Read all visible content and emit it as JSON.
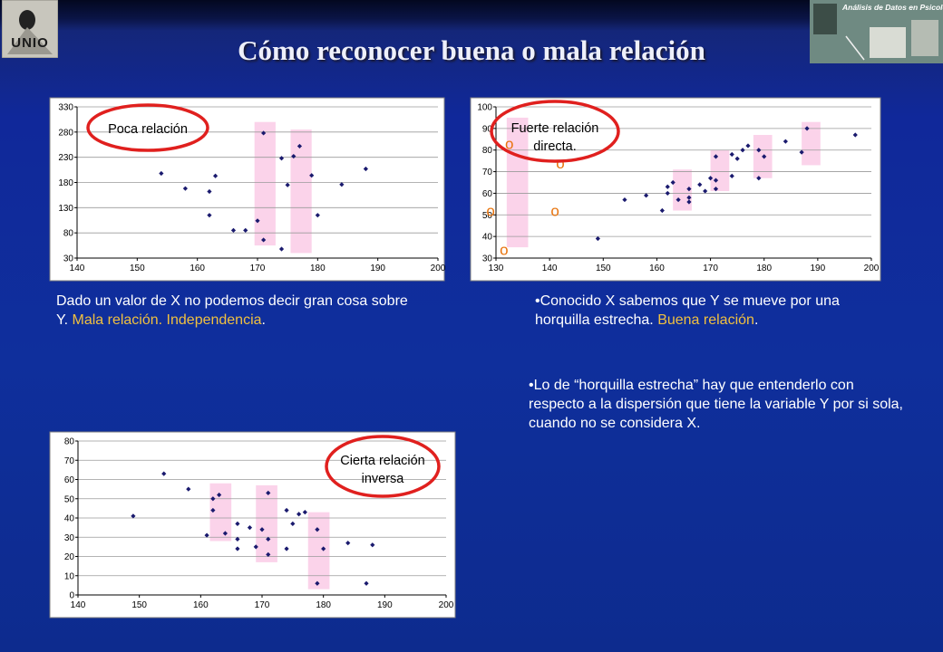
{
  "slide": {
    "title": "Cómo reconocer buena o mala relación",
    "logo_left": "UNIO",
    "logo_right": "Análisis de Datos en Psicología"
  },
  "text1": {
    "lead": "Dado un valor de X no podemos decir gran cosa sobre Y. ",
    "highlight": "Mala relación. Independencia",
    "end": "."
  },
  "text2": {
    "lead": "•Conocido  X sabemos que Y se mueve por una horquilla estrecha. ",
    "highlight": "Buena relación",
    "end": "."
  },
  "text3": {
    "body": "•Lo de “horquilla estrecha” hay que entenderlo con respecto a la dispersión que tiene la variable Y por si sola, cuando no se considera X."
  },
  "colors": {
    "point": "#1a1a6e",
    "band": "#fbd3ea",
    "circle": "#e0201e",
    "marker": "#e8730c",
    "highlight": "#f0c040"
  },
  "chart_data": [
    {
      "type": "scatter",
      "annotation": "Poca relación",
      "xlim": [
        140,
        200
      ],
      "ylim": [
        30,
        330
      ],
      "xticks": [
        140,
        150,
        160,
        170,
        180,
        190,
        200
      ],
      "yticks": [
        30,
        80,
        130,
        180,
        230,
        280,
        330
      ],
      "grid": true,
      "points": [
        [
          154,
          198
        ],
        [
          158,
          168
        ],
        [
          162,
          162
        ],
        [
          163,
          193
        ],
        [
          162,
          115
        ],
        [
          166,
          85
        ],
        [
          168,
          85
        ],
        [
          170,
          104
        ],
        [
          171,
          278
        ],
        [
          171,
          66
        ],
        [
          174,
          48
        ],
        [
          174,
          228
        ],
        [
          175,
          175
        ],
        [
          176,
          232
        ],
        [
          177,
          252
        ],
        [
          179,
          194
        ],
        [
          180,
          115
        ],
        [
          184,
          176
        ],
        [
          188,
          207
        ]
      ],
      "bands": [
        [
          169.5,
          173,
          55,
          300
        ],
        [
          175.5,
          179,
          40,
          285
        ]
      ]
    },
    {
      "type": "scatter",
      "annotation_lines": [
        "Fuerte relación",
        "directa."
      ],
      "xlim": [
        130,
        200
      ],
      "ylim": [
        30,
        100
      ],
      "xticks": [
        130,
        140,
        150,
        160,
        170,
        180,
        190,
        200
      ],
      "yticks": [
        30,
        40,
        50,
        60,
        70,
        80,
        90,
        100
      ],
      "grid": true,
      "points": [
        [
          149,
          39
        ],
        [
          154,
          57
        ],
        [
          158,
          59
        ],
        [
          161,
          52
        ],
        [
          162,
          60
        ],
        [
          162,
          63
        ],
        [
          163,
          65
        ],
        [
          164,
          57
        ],
        [
          166,
          56
        ],
        [
          166,
          58
        ],
        [
          166,
          62
        ],
        [
          168,
          64
        ],
        [
          169,
          61
        ],
        [
          170,
          67
        ],
        [
          171,
          62
        ],
        [
          171,
          66
        ],
        [
          171,
          77
        ],
        [
          174,
          68
        ],
        [
          174,
          78
        ],
        [
          175,
          76
        ],
        [
          176,
          80
        ],
        [
          177,
          82
        ],
        [
          179,
          80
        ],
        [
          179,
          67
        ],
        [
          180,
          77
        ],
        [
          184,
          84
        ],
        [
          187,
          79
        ],
        [
          188,
          90
        ],
        [
          197,
          87
        ]
      ],
      "bands": [
        [
          132,
          136,
          35,
          95
        ],
        [
          163,
          166.5,
          52,
          71
        ],
        [
          170,
          173.5,
          61,
          80
        ],
        [
          178,
          181.5,
          67,
          87
        ],
        [
          187,
          190.5,
          73,
          93
        ]
      ],
      "markers": [
        {
          "label": "o",
          "x": 132.5,
          "y": 83
        },
        {
          "label": "o",
          "x": 142,
          "y": 74
        },
        {
          "label": "o",
          "x": 129,
          "y": 52
        },
        {
          "label": "o",
          "x": 141,
          "y": 52
        },
        {
          "label": "o",
          "x": 131.5,
          "y": 34
        }
      ]
    },
    {
      "type": "scatter",
      "annotation_lines": [
        "Cierta relación",
        "inversa"
      ],
      "xlim": [
        140,
        200
      ],
      "ylim": [
        0,
        80
      ],
      "xticks": [
        140,
        150,
        160,
        170,
        180,
        190,
        200
      ],
      "yticks": [
        0,
        10,
        20,
        30,
        40,
        50,
        60,
        70,
        80
      ],
      "grid": true,
      "points": [
        [
          149,
          41
        ],
        [
          154,
          63
        ],
        [
          158,
          55
        ],
        [
          161,
          31
        ],
        [
          162,
          44
        ],
        [
          162,
          50
        ],
        [
          163,
          52
        ],
        [
          164,
          32
        ],
        [
          166,
          37
        ],
        [
          166,
          24
        ],
        [
          166,
          29
        ],
        [
          168,
          35
        ],
        [
          169,
          25
        ],
        [
          170,
          34
        ],
        [
          171,
          53
        ],
        [
          171,
          21
        ],
        [
          171,
          29
        ],
        [
          174,
          44
        ],
        [
          174,
          24
        ],
        [
          175,
          37
        ],
        [
          176,
          42
        ],
        [
          177,
          43
        ],
        [
          179,
          34
        ],
        [
          179,
          6
        ],
        [
          180,
          24
        ],
        [
          184,
          27
        ],
        [
          187,
          6
        ],
        [
          188,
          26
        ]
      ],
      "bands": [
        [
          161.5,
          165,
          28,
          58
        ],
        [
          169,
          172.5,
          17,
          57
        ],
        [
          177.5,
          181,
          3,
          43
        ]
      ]
    }
  ]
}
